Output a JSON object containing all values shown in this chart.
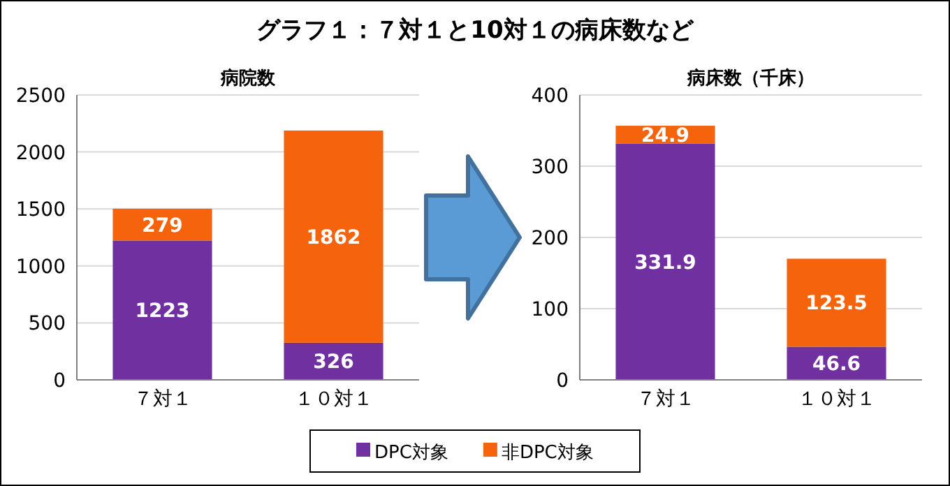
{
  "chart_data": [
    {
      "type": "bar",
      "stacked": true,
      "title": "病院数",
      "annotations": [
        "グラフ１：７対１と10対１の病床数など"
      ],
      "categories": [
        "７対１",
        "１０対１"
      ],
      "ylim": [
        0,
        2500
      ],
      "yticks": [
        0,
        500,
        1000,
        1500,
        2000,
        2500
      ],
      "grid": "y",
      "legend": "bottom",
      "data_labels": true,
      "series": [
        {
          "name": "DPC対象",
          "color": "#7030a0",
          "values": [
            1223,
            326
          ]
        },
        {
          "name": "非DPC対象",
          "color": "#f5640c",
          "values": [
            279,
            1862
          ]
        }
      ]
    },
    {
      "type": "bar",
      "stacked": true,
      "title": "病床数（千床）",
      "categories": [
        "７対１",
        "１０対１"
      ],
      "ylim": [
        0,
        400
      ],
      "yticks": [
        0,
        100,
        200,
        300,
        400
      ],
      "grid": "y",
      "legend": "bottom",
      "data_labels": true,
      "series": [
        {
          "name": "DPC対象",
          "color": "#7030a0",
          "values": [
            331.9,
            46.6
          ]
        },
        {
          "name": "非DPC対象",
          "color": "#f5640c",
          "values": [
            24.9,
            123.5
          ]
        }
      ]
    }
  ]
}
